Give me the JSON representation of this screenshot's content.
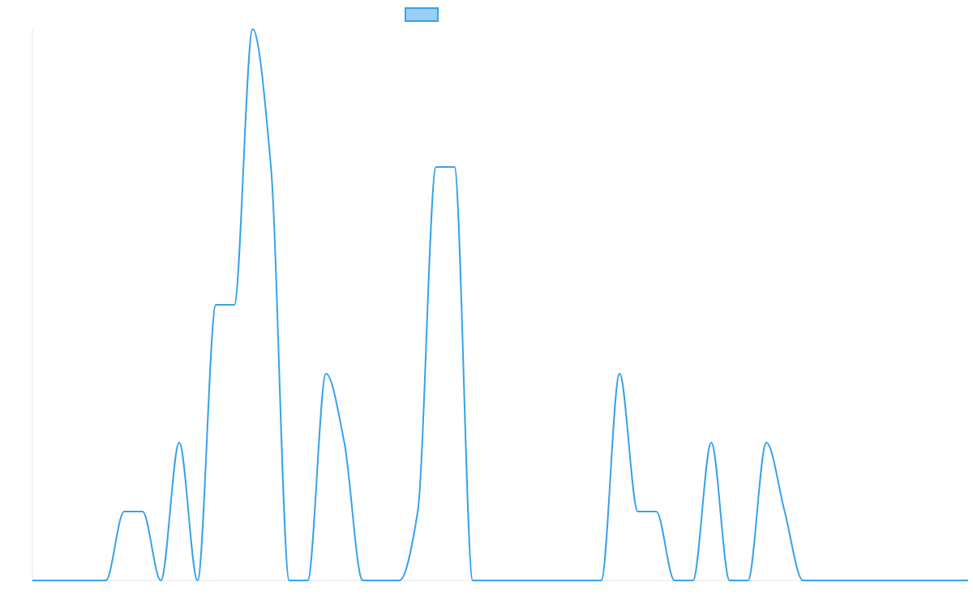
{
  "chart_data": {
    "type": "line",
    "title": "",
    "xlabel": "",
    "ylabel": "",
    "x": [
      0,
      1,
      2,
      3,
      4,
      5,
      6,
      7,
      8,
      9,
      10,
      11,
      12,
      13,
      14,
      15,
      16,
      17,
      18,
      19,
      20,
      21,
      22,
      23,
      24,
      25,
      26,
      27,
      28,
      29,
      30,
      31,
      32,
      33,
      34,
      35,
      36,
      37,
      38,
      39,
      40,
      41,
      42,
      43,
      44,
      45,
      46,
      47,
      48,
      49,
      50,
      51
    ],
    "series": [
      {
        "name": "",
        "color": "#36a2eb",
        "fill": "#9ad0f5",
        "values": [
          0,
          0,
          0,
          0,
          0,
          1,
          1,
          0,
          2,
          0,
          4,
          4,
          8,
          6,
          0,
          0,
          3,
          2,
          0,
          0,
          0,
          1,
          6,
          6,
          0,
          0,
          0,
          0,
          0,
          0,
          0,
          0,
          3,
          1,
          1,
          0,
          0,
          2,
          0,
          0,
          2,
          1,
          0,
          0,
          0,
          0,
          0,
          0,
          0,
          0,
          0,
          0
        ]
      }
    ],
    "ylim": [
      0,
      8
    ],
    "grid": false,
    "legend": "top"
  }
}
